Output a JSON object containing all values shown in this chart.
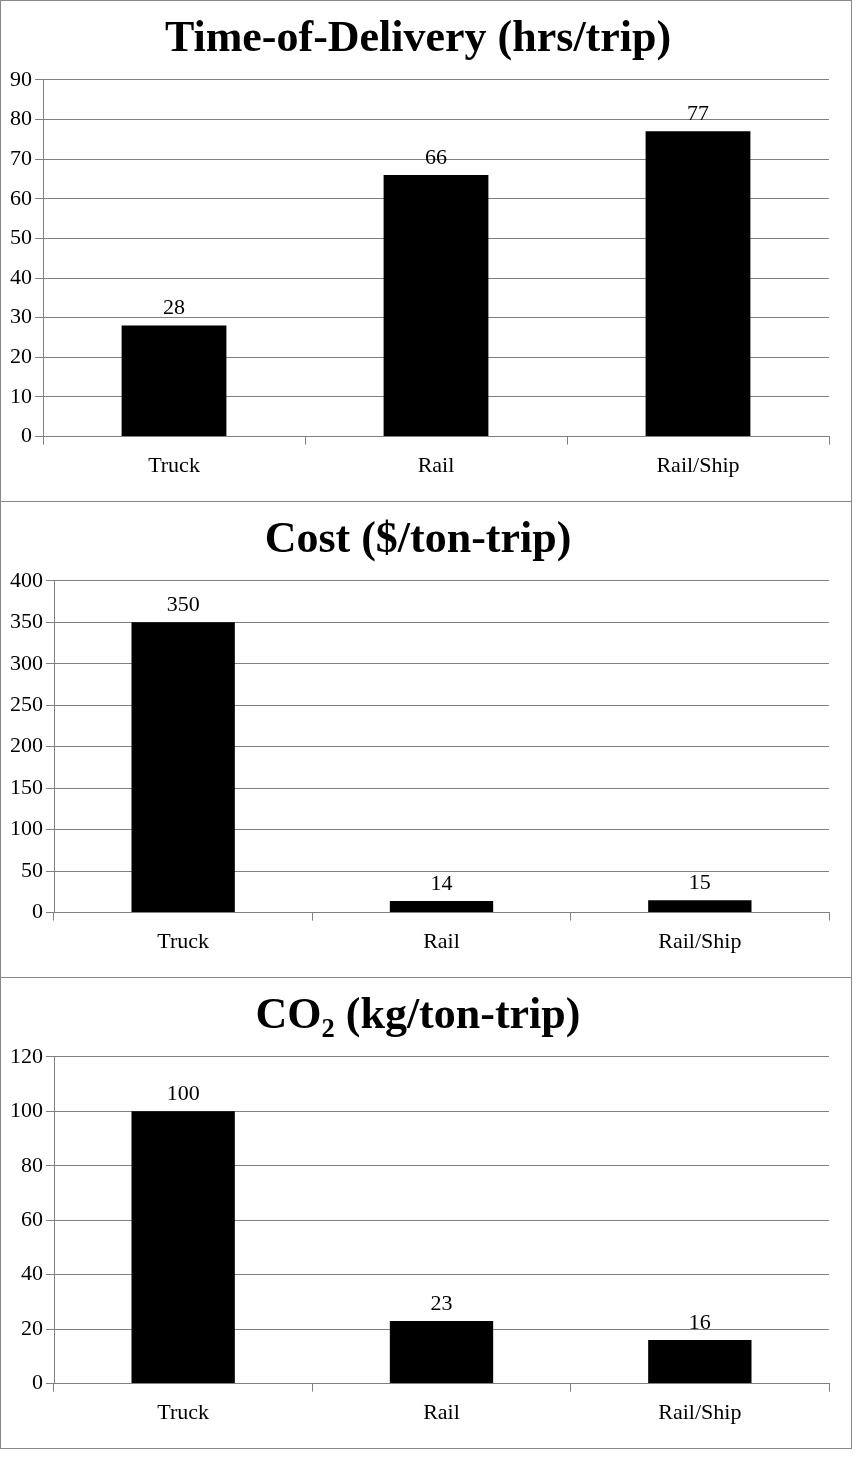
{
  "chart_data": [
    {
      "type": "bar",
      "title": "Time-of-Delivery (hrs/trip)",
      "categories": [
        "Truck",
        "Rail",
        "Rail/Ship"
      ],
      "values": [
        28,
        66,
        77
      ],
      "color": "#000000",
      "ylim": [
        0,
        90
      ],
      "yticks": [
        0,
        10,
        20,
        30,
        40,
        50,
        60,
        70,
        80,
        90
      ],
      "grid": "y",
      "data_labels": true
    },
    {
      "type": "bar",
      "title": "Cost ($/ton-trip)",
      "categories": [
        "Truck",
        "Rail",
        "Rail/Ship"
      ],
      "values": [
        350,
        14,
        15
      ],
      "color": "#000000",
      "ylim": [
        0,
        400
      ],
      "yticks": [
        0,
        50,
        100,
        150,
        200,
        250,
        300,
        350,
        400
      ],
      "grid": "y",
      "data_labels": true
    },
    {
      "type": "bar",
      "title": "CO₂ (kg/ton-trip)",
      "categories": [
        "Truck",
        "Rail",
        "Rail/Ship"
      ],
      "values": [
        100,
        23,
        16
      ],
      "color": "#000000",
      "ylim": [
        0,
        120
      ],
      "yticks": [
        0,
        20,
        40,
        60,
        80,
        100,
        120
      ],
      "grid": "y",
      "data_labels": true
    }
  ]
}
